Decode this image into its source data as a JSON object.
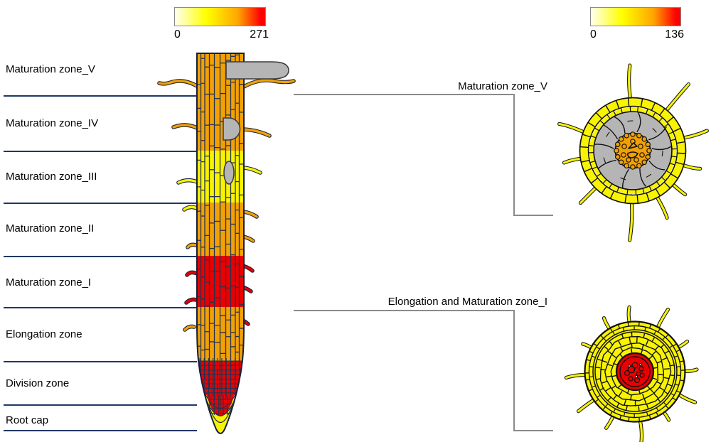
{
  "colorbar_left": {
    "min": "0",
    "max": "271"
  },
  "colorbar_right": {
    "min": "0",
    "max": "136"
  },
  "zone_labels": [
    {
      "label": "Maturation zone_V",
      "color": "orange"
    },
    {
      "label": "Maturation zone_IV",
      "color": "orange"
    },
    {
      "label": "Maturation zone_III",
      "color": "yellow"
    },
    {
      "label": "Maturation zone_II",
      "color": "orange"
    },
    {
      "label": "Maturation zone_I",
      "color": "red"
    },
    {
      "label": "Elongation zone",
      "color": "orange"
    },
    {
      "label": "Division zone",
      "color": "red"
    },
    {
      "label": "Root cap",
      "color": "yellow"
    }
  ],
  "callouts": [
    {
      "label": "Maturation zone_V"
    },
    {
      "label": "Elongation and Maturation zone_I"
    }
  ],
  "colors": {
    "orange": "#F2A105",
    "yellow": "#F8F303",
    "red": "#E90000",
    "gray": "#B5B5B5",
    "wall": "#243352",
    "ink": "#151515",
    "divider": "#1F3864",
    "bracket": "#8A8A8A",
    "scale": [
      "#FFFFEE",
      "#FFFF00",
      "#FFA500",
      "#FF0000"
    ]
  }
}
